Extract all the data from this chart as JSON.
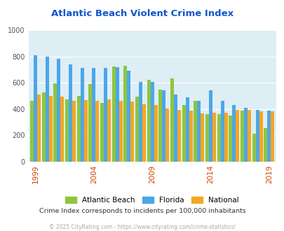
{
  "title": "Atlantic Beach Violent Crime Index",
  "years": [
    1999,
    2000,
    2001,
    2002,
    2003,
    2004,
    2005,
    2006,
    2007,
    2008,
    2009,
    2010,
    2011,
    2012,
    2013,
    2014,
    2015,
    2016,
    2017,
    2018,
    2019
  ],
  "atlantic_beach": [
    463,
    528,
    597,
    473,
    502,
    590,
    448,
    724,
    726,
    497,
    621,
    550,
    631,
    428,
    463,
    364,
    363,
    352,
    388,
    215,
    255
  ],
  "florida": [
    808,
    800,
    783,
    737,
    714,
    710,
    712,
    718,
    691,
    607,
    605,
    544,
    510,
    488,
    462,
    543,
    462,
    433,
    407,
    393,
    388
  ],
  "national": [
    510,
    500,
    497,
    463,
    466,
    463,
    475,
    462,
    456,
    434,
    431,
    404,
    394,
    388,
    368,
    373,
    373,
    394,
    394,
    382,
    381
  ],
  "colors": {
    "atlantic_beach": "#8dc63f",
    "florida": "#4da6e8",
    "national": "#f5a623"
  },
  "ylim": [
    0,
    1000
  ],
  "yticks": [
    0,
    200,
    400,
    600,
    800,
    1000
  ],
  "xtick_years": [
    1999,
    2004,
    2009,
    2014,
    2019
  ],
  "background_color": "#ddeef5",
  "title_color": "#1155cc",
  "subtitle_color": "#333333",
  "footer_color": "#aaaaaa",
  "subtitle": "Crime Index corresponds to incidents per 100,000 inhabitants",
  "footer": "© 2025 CityRating.com - https://www.cityrating.com/crime-statistics/",
  "legend_labels": [
    "Atlantic Beach",
    "Florida",
    "National"
  ]
}
